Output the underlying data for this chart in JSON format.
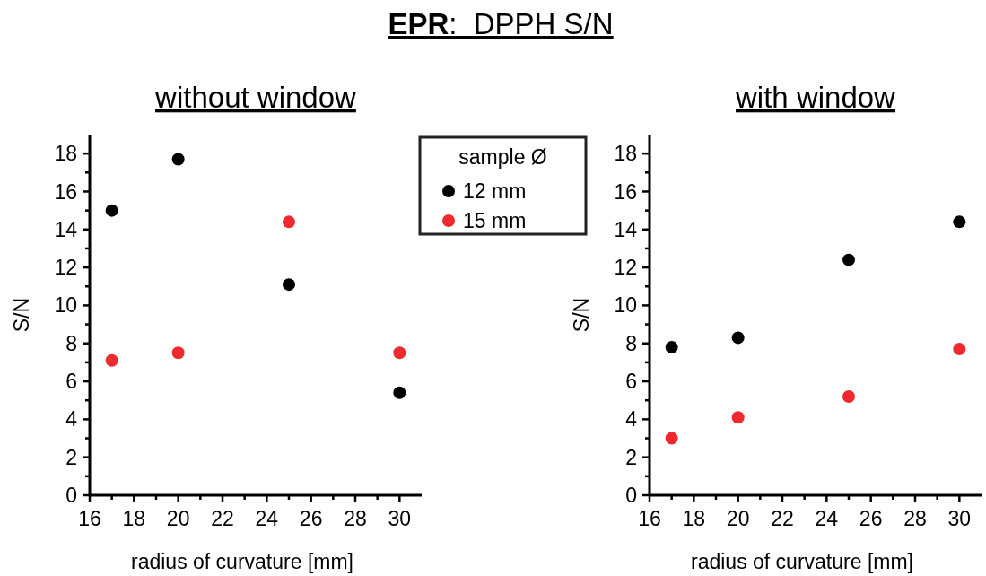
{
  "chart_data": [
    {
      "type": "scatter",
      "title": "EPR:  DPPH S/N",
      "subtitle": "without window",
      "xlabel": "radius of curvature [mm]",
      "ylabel": "S/N",
      "legend_title": "sample Ø",
      "legend": "top right",
      "marker": "circle",
      "x": [
        17,
        20,
        25,
        30
      ],
      "series": [
        {
          "name": "12 mm",
          "color": "#000000",
          "values": [
            15.0,
            17.7,
            11.1,
            5.4
          ]
        },
        {
          "name": "15 mm",
          "color": "#ee2a2e",
          "values": [
            7.1,
            7.5,
            14.4,
            7.5
          ]
        }
      ],
      "xlim": [
        16,
        31
      ],
      "xticks": [
        16,
        {
          "value": 17,
          "label": null
        },
        18,
        {
          "value": 19,
          "label": null
        },
        20,
        {
          "value": 21,
          "label": null
        },
        22,
        {
          "value": 23,
          "label": null
        },
        24,
        {
          "value": 25,
          "label": null
        },
        26,
        {
          "value": 27,
          "label": null
        },
        28,
        {
          "value": 29,
          "label": null
        },
        30
      ],
      "ylim": [
        0,
        19
      ],
      "yticks": [
        0,
        {
          "value": 1,
          "label": null
        },
        2,
        {
          "value": 3,
          "label": null
        },
        4,
        {
          "value": 5,
          "label": null
        },
        6,
        {
          "value": 7,
          "label": null
        },
        8,
        {
          "value": 9,
          "label": null
        },
        10,
        {
          "value": 11,
          "label": null
        },
        12,
        {
          "value": 13,
          "label": null
        },
        14,
        {
          "value": 15,
          "label": null
        },
        16,
        {
          "value": 17,
          "label": null
        },
        18
      ]
    },
    {
      "type": "scatter",
      "subtitle": "with window",
      "xlabel": "radius of curvature [mm]",
      "ylabel": "S/N",
      "marker": "circle",
      "x": [
        17,
        20,
        25,
        30
      ],
      "series": [
        {
          "color": "#000000",
          "values": [
            7.8,
            8.3,
            12.4,
            14.4
          ]
        },
        {
          "color": "#ee2a2e",
          "values": [
            3.0,
            4.1,
            5.2,
            7.7
          ]
        }
      ],
      "xlim": [
        16,
        31
      ],
      "xticks": [
        16,
        {
          "value": 17,
          "label": null
        },
        18,
        {
          "value": 19,
          "label": null
        },
        20,
        {
          "value": 21,
          "label": null
        },
        22,
        {
          "value": 23,
          "label": null
        },
        24,
        {
          "value": 25,
          "label": null
        },
        26,
        {
          "value": 27,
          "label": null
        },
        28,
        {
          "value": 29,
          "label": null
        },
        30
      ],
      "ylim": [
        0,
        19
      ],
      "yticks": [
        0,
        {
          "value": 1,
          "label": null
        },
        2,
        {
          "value": 3,
          "label": null
        },
        4,
        {
          "value": 5,
          "label": null
        },
        6,
        {
          "value": 7,
          "label": null
        },
        8,
        {
          "value": 9,
          "label": null
        },
        10,
        {
          "value": 11,
          "label": null
        },
        12,
        {
          "value": 13,
          "label": null
        },
        14,
        {
          "value": 15,
          "label": null
        },
        16,
        {
          "value": 17,
          "label": null
        },
        18
      ]
    }
  ]
}
